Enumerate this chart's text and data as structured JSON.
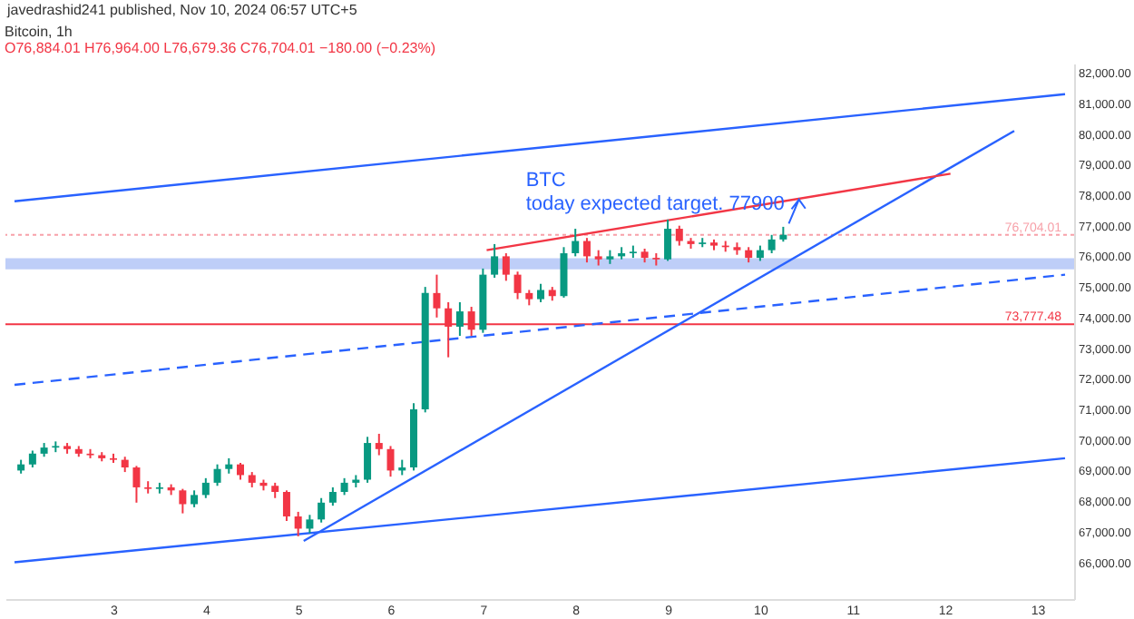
{
  "chart_data": {
    "type": "candlestick",
    "title": "Bitcoin, 1h",
    "subtitle": "O76,884.01 H76,964.00 L76,679.36 C76,704.01 −180.00 (−0.23%)",
    "annotations": [
      "javedrashid241 published, Nov 10, 2024 06:57 UTC+5",
      "BTC\ntoday expected target.  77900"
    ],
    "xlim": [
      1.93,
      13.3
    ],
    "ylim": [
      64800,
      82300
    ],
    "xticks": [
      3,
      4,
      5,
      6,
      7,
      8,
      9,
      10,
      11,
      12,
      13
    ],
    "yticks": [
      {
        "value": 66000,
        "label": "66,000.00"
      },
      {
        "value": 67000,
        "label": "67,000.00"
      },
      {
        "value": 68000,
        "label": "68,000.00"
      },
      {
        "value": 69000,
        "label": "69,000.00"
      },
      {
        "value": 70000,
        "label": "70,000.00"
      },
      {
        "value": 71000,
        "label": "71,000.00"
      },
      {
        "value": 72000,
        "label": "72,000.00"
      },
      {
        "value": 73000,
        "label": "73,000.00"
      },
      {
        "value": 74000,
        "label": "74,000.00"
      },
      {
        "value": 75000,
        "label": "75,000.00"
      },
      {
        "value": 76000,
        "label": "76,000.00"
      },
      {
        "value": 77000,
        "label": "77,000.00"
      },
      {
        "value": 78000,
        "label": "78,000.00"
      },
      {
        "value": 79000,
        "label": "79,000.00"
      },
      {
        "value": 80000,
        "label": "80,000.00"
      },
      {
        "value": 81000,
        "label": "81,000.00"
      },
      {
        "value": 82000,
        "label": "82,000.00"
      }
    ],
    "x": [
      2,
      2.125,
      2.25,
      2.375,
      2.5,
      2.625,
      2.75,
      2.875,
      3,
      3.125,
      3.25,
      3.375,
      3.5,
      3.625,
      3.75,
      3.875,
      4,
      4.125,
      4.25,
      4.375,
      4.5,
      4.625,
      4.75,
      4.875,
      5,
      5.125,
      5.25,
      5.375,
      5.5,
      5.625,
      5.75,
      5.875,
      6,
      6.125,
      6.25,
      6.375,
      6.5,
      6.625,
      6.75,
      6.875,
      7,
      7.125,
      7.25,
      7.375,
      7.5,
      7.625,
      7.75,
      7.875,
      8,
      8.125,
      8.25,
      8.375,
      8.5,
      8.625,
      8.75,
      8.875,
      9,
      9.125,
      9.25,
      9.375,
      9.5,
      9.625,
      9.75,
      9.875,
      10,
      10.125,
      10.25
    ],
    "ohlc": [
      [
        69000,
        69350,
        68900,
        69200
      ],
      [
        69200,
        69650,
        69100,
        69550
      ],
      [
        69550,
        69900,
        69450,
        69750
      ],
      [
        69750,
        69950,
        69600,
        69800
      ],
      [
        69800,
        69900,
        69550,
        69700
      ],
      [
        69700,
        69800,
        69450,
        69550
      ],
      [
        69550,
        69700,
        69400,
        69500
      ],
      [
        69500,
        69600,
        69300,
        69400
      ],
      [
        69400,
        69550,
        69250,
        69350
      ],
      [
        69350,
        69450,
        68950,
        69100
      ],
      [
        69100,
        69150,
        67950,
        68450
      ],
      [
        68450,
        68650,
        68250,
        68400
      ],
      [
        68400,
        68600,
        68250,
        68450
      ],
      [
        68450,
        68550,
        68200,
        68350
      ],
      [
        68350,
        68400,
        67600,
        67900
      ],
      [
        67900,
        68350,
        67800,
        68200
      ],
      [
        68200,
        68750,
        68100,
        68600
      ],
      [
        68600,
        69200,
        68500,
        69050
      ],
      [
        69050,
        69400,
        68900,
        69200
      ],
      [
        69200,
        69250,
        68700,
        68850
      ],
      [
        68850,
        68950,
        68450,
        68600
      ],
      [
        68600,
        68700,
        68350,
        68500
      ],
      [
        68500,
        68600,
        68100,
        68300
      ],
      [
        68300,
        68350,
        67350,
        67500
      ],
      [
        67500,
        67650,
        66850,
        67100
      ],
      [
        67100,
        67550,
        66950,
        67400
      ],
      [
        67400,
        68100,
        67300,
        67950
      ],
      [
        67950,
        68450,
        67850,
        68300
      ],
      [
        68300,
        68750,
        68200,
        68600
      ],
      [
        68600,
        68850,
        68450,
        68700
      ],
      [
        68700,
        70100,
        68600,
        69900
      ],
      [
        69900,
        70200,
        69500,
        69700
      ],
      [
        69700,
        69800,
        68800,
        69000
      ],
      [
        69000,
        69350,
        68850,
        69100
      ],
      [
        69100,
        71200,
        69000,
        71000
      ],
      [
        71000,
        75000,
        70900,
        74800
      ],
      [
        74800,
        75400,
        74000,
        74300
      ],
      [
        74300,
        74500,
        72700,
        73700
      ],
      [
        73700,
        74500,
        73400,
        74200
      ],
      [
        74200,
        74350,
        73400,
        73600
      ],
      [
        73600,
        75600,
        73500,
        75400
      ],
      [
        75400,
        76400,
        75300,
        76000
      ],
      [
        76000,
        76100,
        75200,
        75400
      ],
      [
        75400,
        75500,
        74600,
        74800
      ],
      [
        74800,
        74900,
        74400,
        74600
      ],
      [
        74600,
        75100,
        74500,
        74900
      ],
      [
        74900,
        75000,
        74550,
        74700
      ],
      [
        74700,
        76300,
        74650,
        76100
      ],
      [
        76100,
        76900,
        76000,
        76500
      ],
      [
        76500,
        76600,
        75800,
        76000
      ],
      [
        76000,
        76200,
        75700,
        75900
      ],
      [
        75900,
        76200,
        75750,
        76000
      ],
      [
        76000,
        76300,
        75900,
        76100
      ],
      [
        76100,
        76350,
        75950,
        76150
      ],
      [
        76150,
        76250,
        75800,
        75950
      ],
      [
        75950,
        76100,
        75700,
        75900
      ],
      [
        75900,
        77200,
        75850,
        76900
      ],
      [
        76900,
        77000,
        76350,
        76500
      ],
      [
        76500,
        76600,
        76250,
        76400
      ],
      [
        76400,
        76600,
        76300,
        76450
      ],
      [
        76450,
        76550,
        76200,
        76350
      ],
      [
        76350,
        76500,
        76150,
        76300
      ],
      [
        76300,
        76450,
        76050,
        76200
      ],
      [
        76200,
        76300,
        75800,
        75950
      ],
      [
        75950,
        76350,
        75850,
        76200
      ],
      [
        76200,
        76700,
        76100,
        76550
      ],
      [
        76550,
        76964,
        76480,
        76704
      ]
    ],
    "colors": [
      "#089981",
      "#089981",
      "#089981",
      "#089981",
      "#f23645",
      "#f23645",
      "#f23645",
      "#f23645",
      "#f23645",
      "#f23645",
      "#f23645",
      "#f23645",
      "#089981",
      "#f23645",
      "#f23645",
      "#089981",
      "#089981",
      "#089981",
      "#089981",
      "#f23645",
      "#f23645",
      "#f23645",
      "#f23645",
      "#f23645",
      "#f23645",
      "#089981",
      "#089981",
      "#089981",
      "#089981",
      "#089981",
      "#089981",
      "#f23645",
      "#f23645",
      "#089981",
      "#089981",
      "#089981",
      "#f23645",
      "#f23645",
      "#089981",
      "#f23645",
      "#089981",
      "#089981",
      "#f23645",
      "#f23645",
      "#f23645",
      "#089981",
      "#f23645",
      "#089981",
      "#089981",
      "#f23645",
      "#f23645",
      "#089981",
      "#089981",
      "#089981",
      "#f23645",
      "#f23645",
      "#089981",
      "#f23645",
      "#f23645",
      "#089981",
      "#f23645",
      "#f23645",
      "#f23645",
      "#f23645",
      "#089981",
      "#089981",
      "#089981"
    ],
    "series": [
      {
        "type": "line",
        "color": "#2962ff",
        "x": [
          1.93,
          13.3
        ],
        "values": [
          77800,
          81300
        ]
      },
      {
        "type": "line",
        "color": "#2962ff",
        "x": [
          1.93,
          13.3
        ],
        "values": [
          66000,
          69400
        ]
      },
      {
        "type": "line",
        "color": "#2962ff",
        "line_style": "dashed",
        "x": [
          1.93,
          13.3
        ],
        "values": [
          71800,
          75400
        ]
      },
      {
        "type": "line",
        "color": "#2962ff",
        "x": [
          5.06,
          12.75
        ],
        "values": [
          66700,
          80100
        ]
      },
      {
        "type": "line",
        "color": "#f23645",
        "x": [
          7.04,
          12.06
        ],
        "values": [
          76200,
          78700
        ]
      }
    ],
    "ref_lines": [
      {
        "axis": "y",
        "value": 73777.48,
        "label": "73,777.48",
        "color": "#f23645",
        "line_style": "solid"
      },
      {
        "axis": "y",
        "value": 76704.01,
        "label": "76,704.01",
        "color": "#f7a1a9",
        "line_style": "dotted"
      }
    ],
    "bands": [
      {
        "axis": "y",
        "from": 75576,
        "to": 75939,
        "color": "#b3c6f7"
      }
    ]
  }
}
